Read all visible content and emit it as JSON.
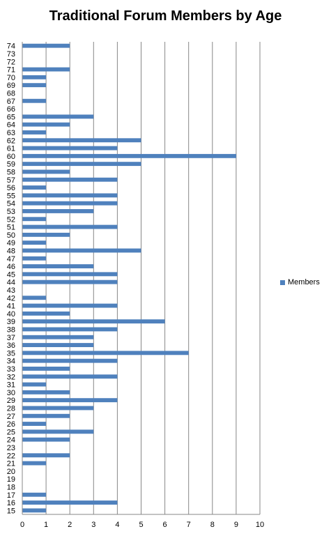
{
  "chart_data": {
    "type": "bar",
    "orientation": "horizontal",
    "title": "Traditional Forum Members by Age",
    "xlabel": "",
    "ylabel": "",
    "xlim": [
      0,
      10
    ],
    "x_ticks": [
      0,
      1,
      2,
      3,
      4,
      5,
      6,
      7,
      8,
      9,
      10
    ],
    "grid": "vertical",
    "legend": "right",
    "bar_color": "#4F81BD",
    "series": [
      {
        "name": "Members"
      }
    ],
    "categories": [
      15,
      16,
      17,
      18,
      19,
      20,
      21,
      22,
      23,
      24,
      25,
      26,
      27,
      28,
      29,
      30,
      31,
      32,
      33,
      34,
      35,
      36,
      37,
      38,
      39,
      40,
      41,
      42,
      43,
      44,
      45,
      46,
      47,
      48,
      49,
      50,
      51,
      52,
      53,
      54,
      55,
      56,
      57,
      58,
      59,
      60,
      61,
      62,
      63,
      64,
      65,
      66,
      67,
      68,
      69,
      70,
      71,
      72,
      73,
      74
    ],
    "values": [
      1,
      4,
      1,
      0,
      0,
      0,
      1,
      2,
      0,
      2,
      3,
      1,
      2,
      3,
      4,
      2,
      1,
      4,
      2,
      4,
      7,
      3,
      3,
      4,
      6,
      2,
      4,
      1,
      0,
      4,
      4,
      3,
      1,
      5,
      1,
      2,
      4,
      1,
      3,
      4,
      4,
      1,
      4,
      2,
      5,
      9,
      4,
      5,
      1,
      2,
      3,
      0,
      1,
      0,
      1,
      1,
      2,
      0,
      0,
      2
    ]
  }
}
